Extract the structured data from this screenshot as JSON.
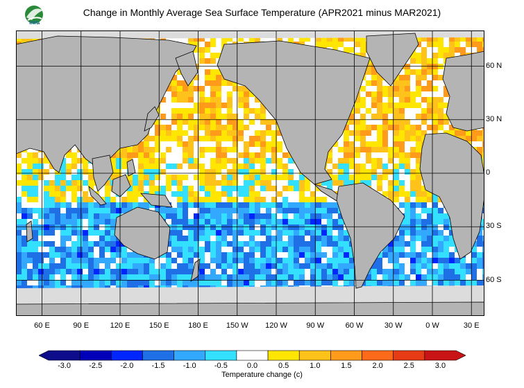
{
  "title": "Change in Monthly Average Sea Surface Temperature (APR2021 minus MAR2021)",
  "logo_text": "สสน",
  "lat_labels": [
    {
      "name": "lat-60n",
      "text": "60 N",
      "lat": 60
    },
    {
      "name": "lat-30n",
      "text": "30 N",
      "lat": 30
    },
    {
      "name": "lat-0",
      "text": "0",
      "lat": 0
    },
    {
      "name": "lat-30s",
      "text": "30 S",
      "lat": -30
    },
    {
      "name": "lat-60s",
      "text": "60 S",
      "lat": -60
    }
  ],
  "lon_labels": [
    {
      "name": "lon-60e",
      "text": "60 E",
      "lon": 60
    },
    {
      "name": "lon-90e",
      "text": "90 E",
      "lon": 90
    },
    {
      "name": "lon-120e",
      "text": "120 E",
      "lon": 120
    },
    {
      "name": "lon-150e",
      "text": "150 E",
      "lon": 150
    },
    {
      "name": "lon-180e",
      "text": "180 E",
      "lon": 180
    },
    {
      "name": "lon-150w",
      "text": "150 W",
      "lon": 210
    },
    {
      "name": "lon-120w",
      "text": "120 W",
      "lon": 240
    },
    {
      "name": "lon-90w",
      "text": "90 W",
      "lon": 270
    },
    {
      "name": "lon-60w",
      "text": "60 W",
      "lon": 300
    },
    {
      "name": "lon-30w",
      "text": "30 W",
      "lon": 330
    },
    {
      "name": "lon-0w",
      "text": "0 W",
      "lon": 360
    },
    {
      "name": "lon-30e",
      "text": "30 E",
      "lon": 390
    }
  ],
  "map_extent": {
    "lon_min": 40,
    "lon_max": 400,
    "lat_min": -80,
    "lat_max": 80
  },
  "colorbar": {
    "title": "Temperature change  (c)",
    "min": -3.25,
    "max": 3.25,
    "bins": [
      {
        "from": -3.25,
        "to": -2.75,
        "color": "#0d0d8c"
      },
      {
        "from": -2.75,
        "to": -2.25,
        "color": "#0000b8"
      },
      {
        "from": -2.25,
        "to": -1.75,
        "color": "#0026ff"
      },
      {
        "from": -1.75,
        "to": -1.25,
        "color": "#1f6fe6"
      },
      {
        "from": -1.25,
        "to": -0.75,
        "color": "#33a8ff"
      },
      {
        "from": -0.75,
        "to": -0.25,
        "color": "#33e0ff"
      },
      {
        "from": -0.25,
        "to": 0.25,
        "color": "#ffffff"
      },
      {
        "from": 0.25,
        "to": 0.75,
        "color": "#ffe600"
      },
      {
        "from": 0.75,
        "to": 1.25,
        "color": "#ffc21a"
      },
      {
        "from": 1.25,
        "to": 1.75,
        "color": "#ff9a1a"
      },
      {
        "from": 1.75,
        "to": 2.25,
        "color": "#ff6a1a"
      },
      {
        "from": 2.25,
        "to": 2.75,
        "color": "#e63b14"
      },
      {
        "from": 2.75,
        "to": 3.25,
        "color": "#c81414"
      }
    ],
    "ticks": [
      {
        "value": -3.0,
        "text": "-3.0"
      },
      {
        "value": -2.5,
        "text": "-2.5"
      },
      {
        "value": -2.0,
        "text": "-2.0"
      },
      {
        "value": -1.5,
        "text": "-1.5"
      },
      {
        "value": -1.0,
        "text": "-1.0"
      },
      {
        "value": -0.5,
        "text": "-0.5"
      },
      {
        "value": 0.0,
        "text": "0.0"
      },
      {
        "value": 0.5,
        "text": "0.5"
      },
      {
        "value": 1.0,
        "text": "1.0"
      },
      {
        "value": 1.5,
        "text": "1.5"
      },
      {
        "value": 2.0,
        "text": "2.0"
      },
      {
        "value": 2.5,
        "text": "2.5"
      },
      {
        "value": 3.0,
        "text": "3.0"
      }
    ]
  },
  "colors": {
    "land": "#b4b4b4",
    "ice": "#dcdcdc",
    "ocean_zero": "#ffffff",
    "grid": "#000000"
  }
}
